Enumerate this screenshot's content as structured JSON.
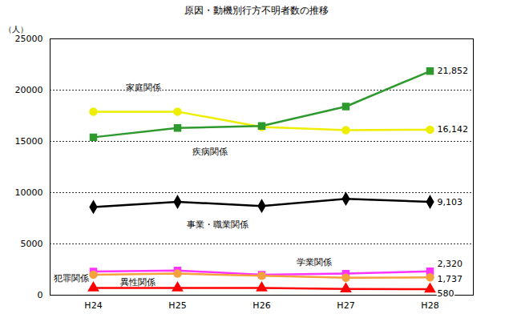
{
  "chart_data": {
    "type": "line",
    "title": "原因・動機別行方不明者数の推移",
    "y_label": "（人）",
    "categories": [
      "H24",
      "H25",
      "H26",
      "H27",
      "H28"
    ],
    "ylim": [
      0,
      25000
    ],
    "yticks": [
      0,
      5000,
      10000,
      15000,
      20000,
      25000
    ],
    "grid": true,
    "series": [
      {
        "name": "家庭関係",
        "color": "#eeee00",
        "marker": "circle",
        "values": [
          17900,
          17900,
          16400,
          16100,
          16142
        ],
        "value_labels": [
          null,
          null,
          null,
          null,
          "16,142"
        ]
      },
      {
        "name": "疾病関係",
        "color": "#2e9a2e",
        "marker": "square",
        "values": [
          15400,
          16300,
          16500,
          18400,
          21852
        ],
        "value_labels": [
          null,
          null,
          null,
          null,
          "21,852"
        ]
      },
      {
        "name": "事業・職業関係",
        "color": "#000000",
        "marker": "diamond",
        "values": [
          8600,
          9100,
          8700,
          9400,
          9103
        ],
        "value_labels": [
          null,
          null,
          null,
          null,
          "9,103"
        ]
      },
      {
        "name": "学業関係",
        "color": "#ff33ff",
        "marker": "square",
        "values": [
          2300,
          2400,
          2000,
          2100,
          2320
        ],
        "value_labels": [
          null,
          null,
          null,
          null,
          "2,320"
        ]
      },
      {
        "name": "異性関係",
        "color": "#f5a23c",
        "marker": "circle",
        "values": [
          2000,
          2100,
          1900,
          1700,
          1737
        ],
        "value_labels": [
          null,
          null,
          null,
          null,
          "1,737"
        ]
      },
      {
        "name": "犯罪関係",
        "color": "#ff0000",
        "marker": "triangle",
        "values": [
          700,
          700,
          700,
          600,
          580
        ],
        "value_labels": [
          null,
          null,
          null,
          null,
          "580"
        ]
      }
    ]
  }
}
